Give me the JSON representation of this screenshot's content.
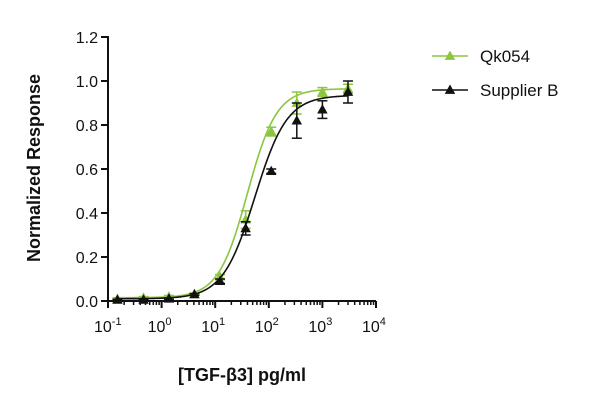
{
  "chart_data": {
    "type": "scatter",
    "xlabel": "[TGF-β3] pg/ml",
    "ylabel": "Normalized Response",
    "x_scale": "log",
    "xlim": [
      0.1,
      10000
    ],
    "ylim": [
      0.0,
      1.2
    ],
    "x_ticks": [
      {
        "value": 0.1,
        "base": "10",
        "exp": "-1"
      },
      {
        "value": 1,
        "base": "10",
        "exp": "0"
      },
      {
        "value": 10,
        "base": "10",
        "exp": "1"
      },
      {
        "value": 100,
        "base": "10",
        "exp": "2"
      },
      {
        "value": 1000,
        "base": "10",
        "exp": "3"
      },
      {
        "value": 10000,
        "base": "10",
        "exp": "4"
      }
    ],
    "y_ticks": [
      "0.0",
      "0.2",
      "0.4",
      "0.6",
      "0.8",
      "1.0",
      "1.2"
    ],
    "grid": false,
    "legend_position": "top-right",
    "series": [
      {
        "name": "Qk054",
        "color": "#8cc63f",
        "marker": "triangle",
        "x": [
          0.15,
          0.46,
          1.37,
          4.1,
          12.3,
          37,
          111,
          333,
          1000,
          3000
        ],
        "y": [
          0.01,
          0.015,
          0.02,
          0.03,
          0.11,
          0.37,
          0.77,
          0.9,
          0.95,
          0.965
        ],
        "err": [
          0.005,
          0.005,
          0.005,
          0.005,
          0.01,
          0.04,
          0.02,
          0.05,
          0.02,
          0.02
        ],
        "fit": {
          "bottom": 0.015,
          "top": 0.965,
          "ec50": 40,
          "hill": 1.6
        }
      },
      {
        "name": "Supplier B",
        "color": "#111111",
        "marker": "triangle",
        "x": [
          0.15,
          0.46,
          1.37,
          4.1,
          12.3,
          37,
          111,
          333,
          1000,
          3000
        ],
        "y": [
          0.005,
          0.005,
          0.01,
          0.03,
          0.09,
          0.33,
          0.59,
          0.82,
          0.87,
          0.95
        ],
        "err": [
          0.003,
          0.003,
          0.004,
          0.004,
          0.01,
          0.03,
          0.01,
          0.08,
          0.04,
          0.05
        ],
        "fit": {
          "bottom": 0.01,
          "top": 0.935,
          "ec50": 55,
          "hill": 1.45
        }
      }
    ]
  }
}
